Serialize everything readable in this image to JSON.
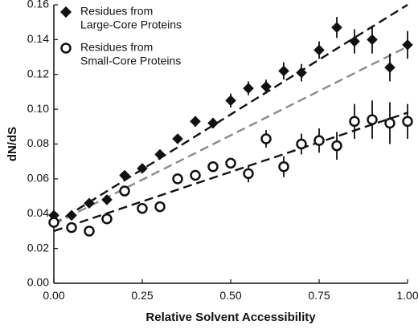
{
  "chart_data": {
    "type": "scatter",
    "xlabel": "Relative Solvent Accessibility",
    "ylabel": "dN/dS",
    "xlim": [
      0,
      1
    ],
    "ylim": [
      0,
      0.16
    ],
    "x_ticks": [
      "0.00",
      "0.25",
      "0.50",
      "0.75",
      "1.00"
    ],
    "y_ticks": [
      "0.00",
      "0.02",
      "0.04",
      "0.06",
      "0.08",
      "0.10",
      "0.12",
      "0.14",
      "0.16"
    ],
    "grid": false,
    "legend_position": "top-left",
    "series": [
      {
        "name": "Residues from Large-Core Proteins",
        "marker": "filled-diamond",
        "color": "#111111",
        "x": [
          0.0,
          0.05,
          0.1,
          0.15,
          0.2,
          0.25,
          0.3,
          0.35,
          0.4,
          0.45,
          0.5,
          0.55,
          0.6,
          0.65,
          0.7,
          0.75,
          0.8,
          0.85,
          0.9,
          0.95,
          1.0
        ],
        "y": [
          0.039,
          0.039,
          0.046,
          0.048,
          0.062,
          0.066,
          0.074,
          0.083,
          0.093,
          0.092,
          0.105,
          0.112,
          0.113,
          0.122,
          0.121,
          0.134,
          0.147,
          0.139,
          0.14,
          0.124,
          0.137
        ],
        "err": [
          0.002,
          0.002,
          0.002,
          0.002,
          0.002,
          0.002,
          0.002,
          0.002,
          0.003,
          0.003,
          0.004,
          0.004,
          0.004,
          0.005,
          0.005,
          0.005,
          0.006,
          0.007,
          0.008,
          0.008,
          0.008
        ]
      },
      {
        "name": "Residues from Small-Core Proteins",
        "marker": "open-circle",
        "color": "#111111",
        "x": [
          0.0,
          0.05,
          0.1,
          0.15,
          0.2,
          0.25,
          0.3,
          0.35,
          0.4,
          0.45,
          0.5,
          0.55,
          0.6,
          0.65,
          0.7,
          0.75,
          0.8,
          0.85,
          0.9,
          0.95,
          1.0
        ],
        "y": [
          0.035,
          0.032,
          0.03,
          0.037,
          0.053,
          0.043,
          0.044,
          0.06,
          0.062,
          0.067,
          0.069,
          0.063,
          0.083,
          0.067,
          0.08,
          0.082,
          0.079,
          0.093,
          0.094,
          0.092,
          0.093
        ],
        "err": [
          0.002,
          0.002,
          0.002,
          0.002,
          0.003,
          0.003,
          0.003,
          0.003,
          0.003,
          0.003,
          0.003,
          0.005,
          0.005,
          0.006,
          0.006,
          0.007,
          0.008,
          0.01,
          0.011,
          0.012,
          0.01
        ]
      }
    ],
    "trend_lines": [
      {
        "style": "black-dashed",
        "x": [
          0,
          1
        ],
        "y": [
          0.034,
          0.16
        ]
      },
      {
        "style": "gray-dashed",
        "x": [
          0,
          1
        ],
        "y": [
          0.034,
          0.136
        ]
      },
      {
        "style": "black-dashed",
        "x": [
          0,
          1
        ],
        "y": [
          0.03,
          0.098
        ]
      }
    ]
  }
}
